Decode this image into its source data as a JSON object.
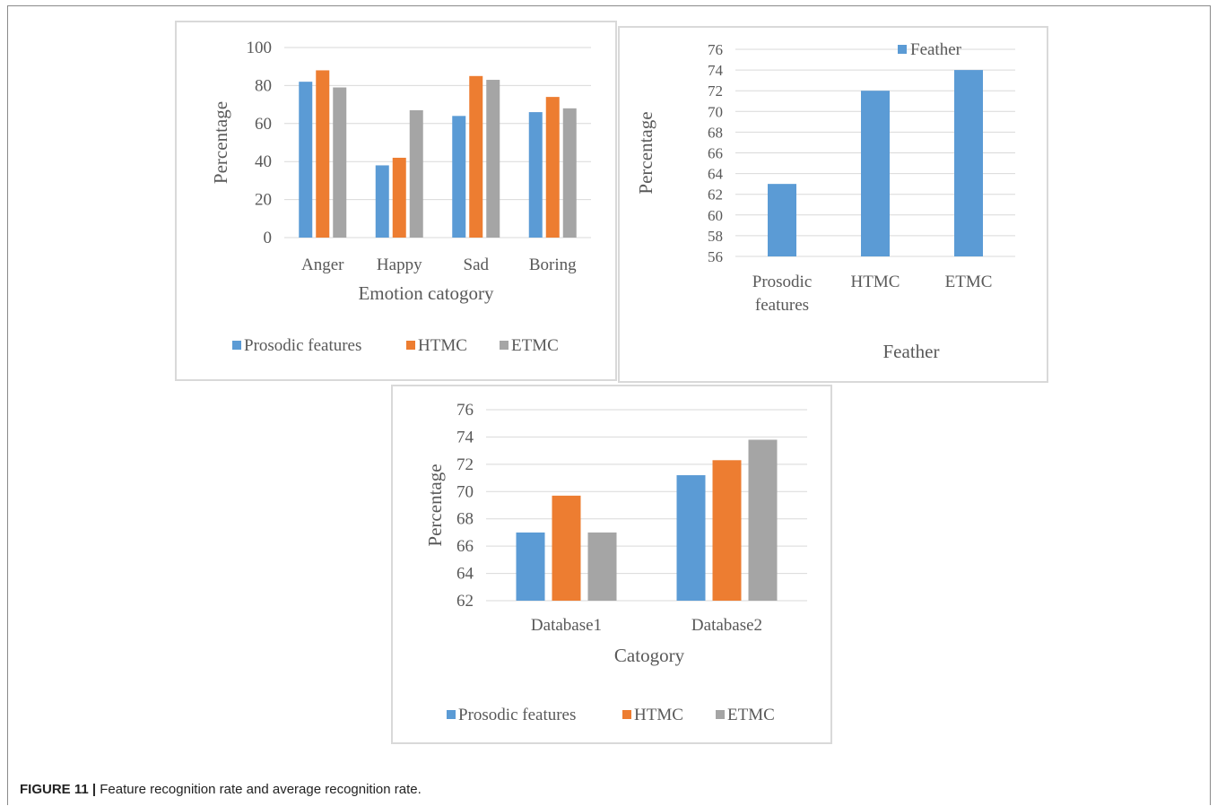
{
  "caption": {
    "label": "FIGURE 11 |",
    "text": "Feature recognition rate and average recognition rate."
  },
  "colors": {
    "prosodic": "#5b9bd5",
    "htmc": "#ed7d31",
    "etmc": "#a5a5a5",
    "grid": "#d9d9d9",
    "text": "#595959"
  },
  "chart_data": [
    {
      "type": "bar",
      "title": "",
      "xlabel": "Emotion catogory",
      "ylabel": "Percentage",
      "ylim": [
        0,
        100
      ],
      "yticks": [
        0,
        20,
        40,
        60,
        80,
        100
      ],
      "categories": [
        "Anger",
        "Happy",
        "Sad",
        "Boring"
      ],
      "series": [
        {
          "name": "Prosodic features",
          "color": "#5b9bd5",
          "values": [
            82,
            38,
            64,
            66
          ]
        },
        {
          "name": "HTMC",
          "color": "#ed7d31",
          "values": [
            88,
            42,
            85,
            74
          ]
        },
        {
          "name": "ETMC",
          "color": "#a5a5a5",
          "values": [
            79,
            67,
            83,
            68
          ]
        }
      ],
      "legend": "bottom",
      "grid": true
    },
    {
      "type": "bar",
      "title": "",
      "xlabel": "Feather",
      "ylabel": "Percentage",
      "ylim": [
        56,
        76
      ],
      "yticks": [
        56,
        58,
        60,
        62,
        64,
        66,
        68,
        70,
        72,
        74,
        76
      ],
      "categories": [
        [
          "Prosodic",
          "features"
        ],
        [
          "HTMC"
        ],
        [
          "ETMC"
        ]
      ],
      "series": [
        {
          "name": "Feather",
          "color": "#5b9bd5",
          "values": [
            63,
            72,
            74
          ]
        }
      ],
      "legend": "top-right",
      "grid": true
    },
    {
      "type": "bar",
      "title": "",
      "xlabel": "Catogory",
      "ylabel": "Percentage",
      "ylim": [
        62,
        76
      ],
      "yticks": [
        62,
        64,
        66,
        68,
        70,
        72,
        74,
        76
      ],
      "categories": [
        "Database1",
        "Database2"
      ],
      "series": [
        {
          "name": "Prosodic features",
          "color": "#5b9bd5",
          "values": [
            67,
            71.2
          ]
        },
        {
          "name": "HTMC",
          "color": "#ed7d31",
          "values": [
            69.7,
            72.3
          ]
        },
        {
          "name": "ETMC",
          "color": "#a5a5a5",
          "values": [
            67,
            73.8
          ]
        }
      ],
      "legend": "bottom",
      "grid": true
    }
  ]
}
